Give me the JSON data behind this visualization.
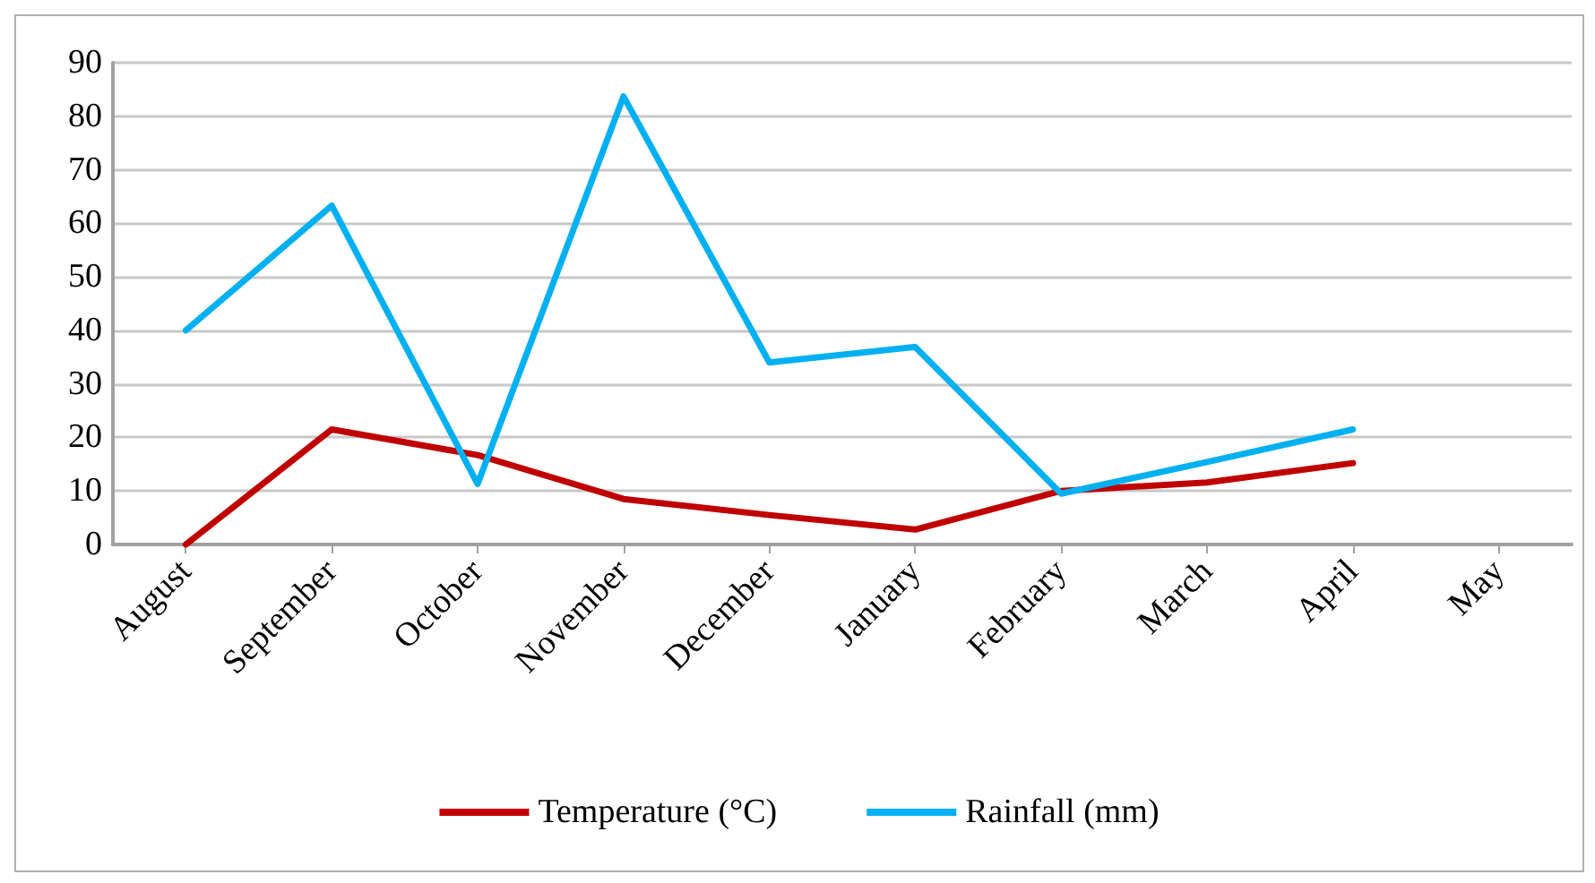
{
  "chart_data": {
    "type": "line",
    "categories": [
      "August",
      "September",
      "October",
      "November",
      "December",
      "January",
      "February",
      "March",
      "April",
      "May"
    ],
    "series": [
      {
        "name": "Temperature (°C)",
        "color": "#c00000",
        "values": [
          0,
          21.5,
          16.7,
          8.5,
          5.5,
          2.8,
          10,
          11.6,
          15.2,
          null
        ]
      },
      {
        "name": "Rainfall (mm)",
        "color": "#00b0f0",
        "values": [
          40,
          63.3,
          11.3,
          83.7,
          34,
          36.9,
          9.5,
          15.4,
          21.5,
          null
        ]
      }
    ],
    "ylim": [
      0,
      90
    ],
    "yticks": [
      0,
      10,
      20,
      30,
      40,
      50,
      60,
      70,
      80,
      90
    ],
    "grid": "y",
    "legend": "bottom",
    "marker": "none",
    "line_style": "solid"
  }
}
